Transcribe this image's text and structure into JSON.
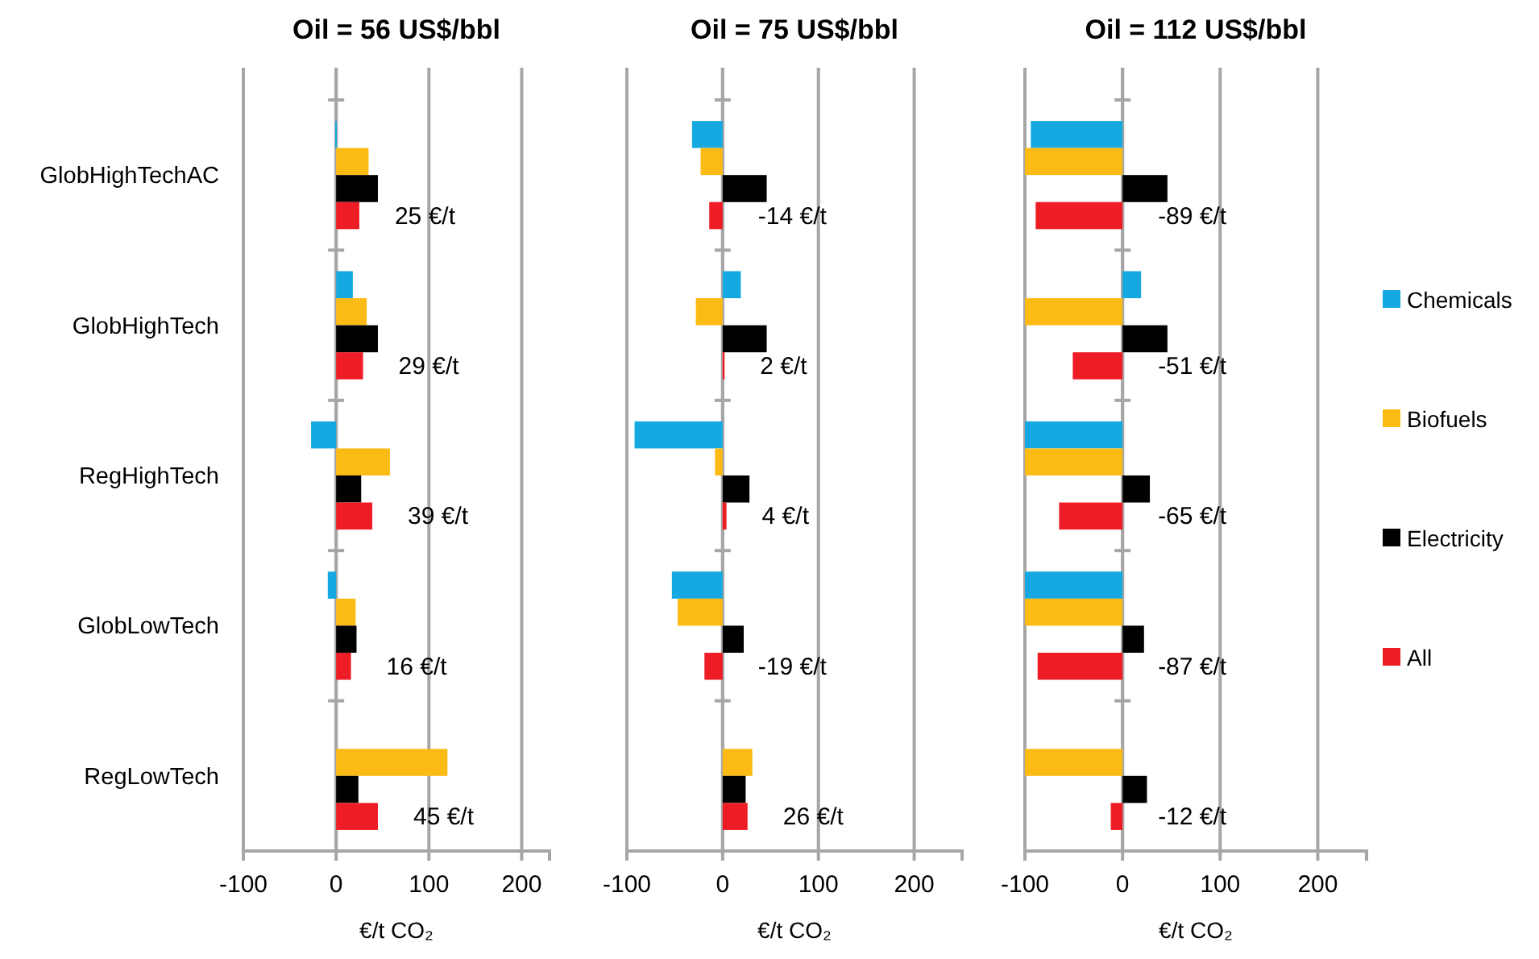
{
  "chart_data": [
    {
      "type": "bar",
      "orientation": "horizontal",
      "title": "Oil = 56 US$/bbl",
      "xlabel": "€/t CO₂",
      "categories": [
        "GlobHighTechAC",
        "GlobHighTech",
        "RegHighTech",
        "GlobLowTech",
        "RegLowTech"
      ],
      "xlim": [
        -100,
        230
      ],
      "xticks": [
        -100,
        0,
        100,
        200
      ],
      "grid": "x",
      "legend": false,
      "series": [
        {
          "color": "#16a9e1",
          "values": [
            -1,
            18,
            -27,
            -9,
            null
          ]
        },
        {
          "color": "#fcbb14",
          "values": [
            35,
            33,
            58,
            21,
            120
          ]
        },
        {
          "color": "#000000",
          "values": [
            45,
            45,
            27,
            22,
            24
          ]
        },
        {
          "color": "#ee1c25",
          "values": [
            25,
            29,
            39,
            16,
            45
          ],
          "value_labels": [
            "25 €/t",
            "29 €/t",
            "39 €/t",
            "16 €/t",
            "45 €/t"
          ]
        }
      ]
    },
    {
      "type": "bar",
      "orientation": "horizontal",
      "title": "Oil = 75 US$/bbl",
      "xlabel": "€/t CO₂",
      "categories": [
        null,
        null,
        null,
        null,
        null
      ],
      "tick_labels": "x",
      "xlim": [
        -100,
        250
      ],
      "xticks": [
        -100,
        0,
        100,
        200
      ],
      "grid": "x",
      "legend": false,
      "series": [
        {
          "color": "#16a9e1",
          "values": [
            -32,
            19,
            -92,
            -53,
            null
          ]
        },
        {
          "color": "#fcbb14",
          "values": [
            -23,
            -28,
            -8,
            -47,
            31
          ]
        },
        {
          "color": "#000000",
          "values": [
            46,
            46,
            28,
            22,
            24
          ]
        },
        {
          "color": "#ee1c25",
          "values": [
            -14,
            2,
            4,
            -19,
            26
          ],
          "value_labels": [
            "-14 €/t",
            "2 €/t",
            "4 €/t",
            "-19 €/t",
            "26 €/t"
          ]
        }
      ]
    },
    {
      "type": "bar",
      "orientation": "horizontal",
      "title": "Oil = 112 US$/bbl",
      "xlabel": "€/t CO₂",
      "categories": [
        null,
        null,
        null,
        null,
        null
      ],
      "tick_labels": "x",
      "xlim": [
        -100,
        250
      ],
      "xticks": [
        -100,
        0,
        100,
        200
      ],
      "grid": "x",
      "legend": "right",
      "series": [
        {
          "name": "Chemicals",
          "color": "#16a9e1",
          "values": [
            -94,
            19,
            -100,
            -100,
            null
          ]
        },
        {
          "name": "Biofuels",
          "color": "#fcbb14",
          "values": [
            -100,
            -100,
            -100,
            -100,
            -100
          ]
        },
        {
          "name": "Electricity",
          "color": "#000000",
          "values": [
            46,
            46,
            28,
            22,
            25
          ]
        },
        {
          "name": "All",
          "color": "#ee1c25",
          "values": [
            -89,
            -51,
            -65,
            -87,
            -12
          ],
          "value_labels": [
            "-89 €/t",
            "-51 €/t",
            "-65 €/t",
            "-87 €/t",
            "-12 €/t"
          ]
        }
      ]
    }
  ]
}
